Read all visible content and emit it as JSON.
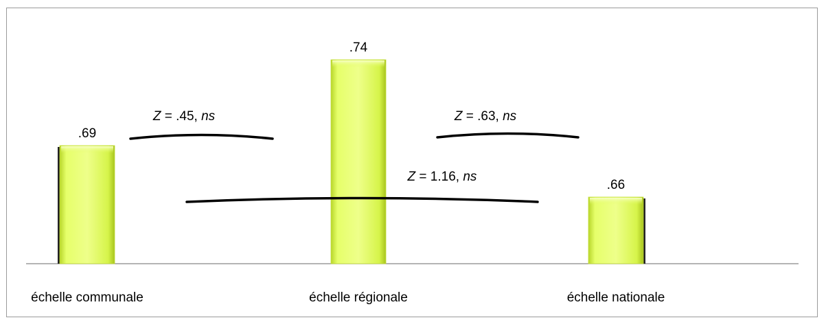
{
  "chart_data": {
    "type": "bar",
    "categories": [
      "échelle communale",
      "échelle régionale",
      "échelle nationale"
    ],
    "series": [
      {
        "values": [
          0.69,
          0.74,
          0.66
        ],
        "value_labels": [
          ".69",
          ".74",
          ".66"
        ]
      }
    ],
    "title": "",
    "xlabel": "",
    "ylabel": "",
    "grid": false,
    "legend": "none",
    "colors": {
      "bar_fill": "#d9ff4a",
      "bar_highlight": "#f3ffb0",
      "bar_shadow": "#9fbf1e",
      "axis": "#888888",
      "bracket": "#000000"
    },
    "annotations": [
      {
        "from": 0,
        "to": 1,
        "stat": "Z",
        "equals": " = ",
        "value": ".45, ",
        "sig": "ns"
      },
      {
        "from": 1,
        "to": 2,
        "stat": "Z",
        "equals": " = ",
        "value": ".63, ",
        "sig": "ns"
      },
      {
        "from": 0,
        "to": 2,
        "stat": "Z",
        "equals": " = ",
        "value": "1.16, ",
        "sig": "ns"
      }
    ]
  }
}
